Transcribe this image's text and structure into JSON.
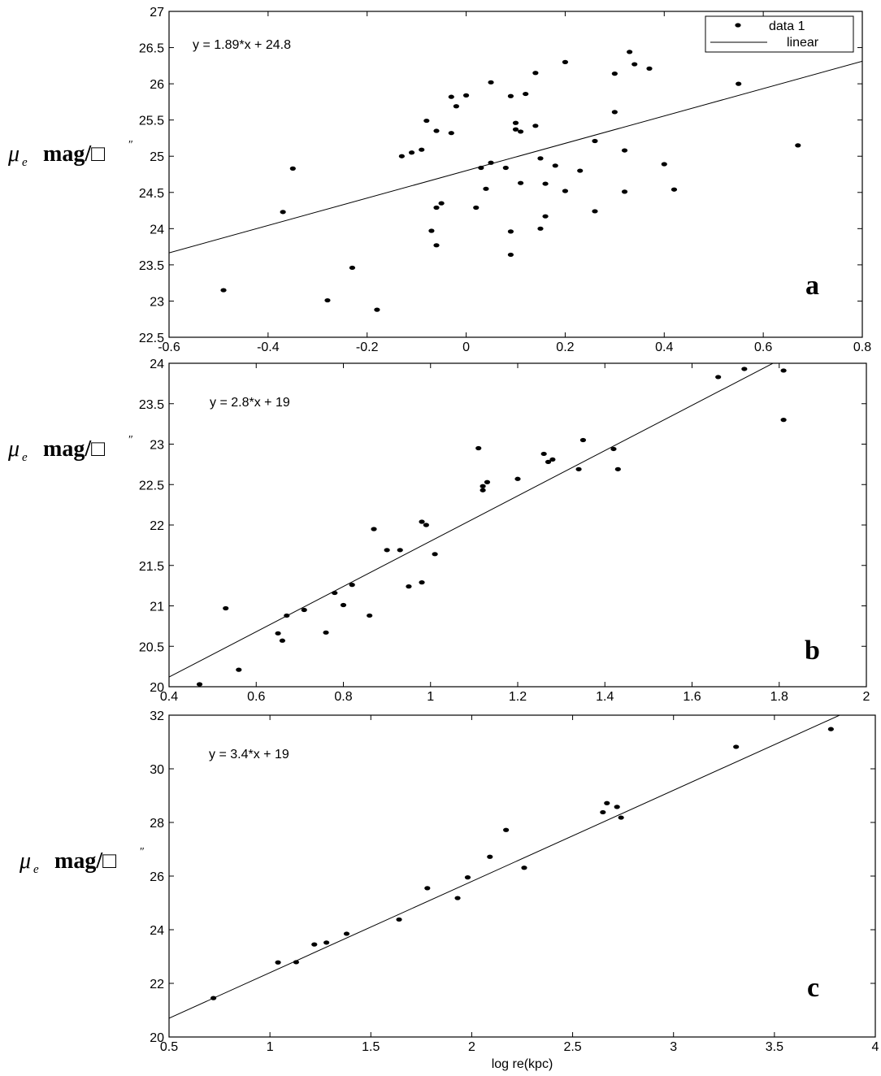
{
  "chart_data": [
    {
      "type": "scatter",
      "panel_label": "a",
      "equation": "y = 1.89*x + 24.8",
      "ylabel": {
        "symbol": "μ",
        "subscript": "e",
        "text": "mag/□",
        "secant": "″"
      },
      "xlabel": "",
      "xlim": [
        -0.6,
        0.8
      ],
      "ylim": [
        22.5,
        27
      ],
      "xticks": [
        "-0.6",
        "-0.4",
        "-0.2",
        "0",
        "0.2",
        "0.4",
        "0.6",
        "0.8"
      ],
      "yticks": [
        "22.5",
        "23",
        "23.5",
        "24",
        "24.5",
        "25",
        "25.5",
        "26",
        "26.5",
        "27"
      ],
      "legend": {
        "position": "top-right",
        "entries": [
          "data 1",
          "linear"
        ]
      },
      "grid": false,
      "fit": {
        "slope": 1.89,
        "intercept": 24.8
      },
      "points": [
        [
          -0.49,
          23.15
        ],
        [
          -0.37,
          24.23
        ],
        [
          -0.35,
          24.83
        ],
        [
          -0.28,
          23.01
        ],
        [
          -0.23,
          23.46
        ],
        [
          -0.18,
          22.88
        ],
        [
          -0.13,
          25.0
        ],
        [
          -0.11,
          25.05
        ],
        [
          -0.09,
          25.09
        ],
        [
          -0.08,
          25.49
        ],
        [
          -0.07,
          23.97
        ],
        [
          -0.06,
          25.35
        ],
        [
          -0.06,
          24.29
        ],
        [
          -0.05,
          24.35
        ],
        [
          -0.06,
          23.77
        ],
        [
          -0.03,
          25.32
        ],
        [
          -0.03,
          25.82
        ],
        [
          -0.02,
          25.69
        ],
        [
          0.0,
          25.84
        ],
        [
          0.02,
          24.29
        ],
        [
          0.03,
          24.84
        ],
        [
          0.04,
          24.55
        ],
        [
          0.05,
          24.91
        ],
        [
          0.05,
          26.02
        ],
        [
          0.08,
          24.84
        ],
        [
          0.09,
          23.96
        ],
        [
          0.09,
          23.64
        ],
        [
          0.09,
          25.83
        ],
        [
          0.1,
          25.46
        ],
        [
          0.1,
          25.37
        ],
        [
          0.11,
          25.34
        ],
        [
          0.11,
          24.63
        ],
        [
          0.12,
          25.86
        ],
        [
          0.14,
          26.15
        ],
        [
          0.14,
          25.42
        ],
        [
          0.15,
          24.0
        ],
        [
          0.15,
          24.97
        ],
        [
          0.16,
          24.17
        ],
        [
          0.16,
          24.62
        ],
        [
          0.18,
          24.87
        ],
        [
          0.2,
          26.3
        ],
        [
          0.2,
          24.52
        ],
        [
          0.23,
          24.8
        ],
        [
          0.26,
          25.21
        ],
        [
          0.26,
          24.24
        ],
        [
          0.3,
          25.61
        ],
        [
          0.3,
          26.14
        ],
        [
          0.32,
          24.51
        ],
        [
          0.32,
          25.08
        ],
        [
          0.33,
          26.44
        ],
        [
          0.34,
          26.27
        ],
        [
          0.37,
          26.21
        ],
        [
          0.4,
          24.89
        ],
        [
          0.42,
          24.54
        ],
        [
          0.55,
          26.0
        ],
        [
          0.67,
          25.15
        ]
      ]
    },
    {
      "type": "scatter",
      "panel_label": "b",
      "equation": "y = 2.8*x + 19",
      "ylabel": {
        "symbol": "μ",
        "subscript": "e",
        "text": "mag/□",
        "secant": "″"
      },
      "xlabel": "",
      "xlim": [
        0.4,
        2
      ],
      "ylim": [
        20,
        24
      ],
      "xticks": [
        "0.4",
        "0.6",
        "0.8",
        "1",
        "1.2",
        "1.4",
        "1.6",
        "1.8",
        "2"
      ],
      "yticks": [
        "20",
        "20.5",
        "21",
        "21.5",
        "22",
        "22.5",
        "23",
        "23.5",
        "24"
      ],
      "grid": false,
      "fit": {
        "slope": 2.8,
        "intercept": 19
      },
      "points": [
        [
          0.47,
          20.03
        ],
        [
          0.53,
          20.97
        ],
        [
          0.56,
          20.21
        ],
        [
          0.65,
          20.66
        ],
        [
          0.66,
          20.57
        ],
        [
          0.67,
          20.88
        ],
        [
          0.71,
          20.95
        ],
        [
          0.76,
          20.67
        ],
        [
          0.78,
          21.16
        ],
        [
          0.8,
          21.01
        ],
        [
          0.82,
          21.26
        ],
        [
          0.86,
          20.88
        ],
        [
          0.87,
          21.95
        ],
        [
          0.9,
          21.69
        ],
        [
          0.93,
          21.69
        ],
        [
          0.95,
          21.24
        ],
        [
          0.98,
          21.29
        ],
        [
          0.98,
          22.04
        ],
        [
          0.99,
          22.0
        ],
        [
          1.01,
          21.64
        ],
        [
          1.11,
          22.95
        ],
        [
          1.12,
          22.48
        ],
        [
          1.12,
          22.43
        ],
        [
          1.13,
          22.53
        ],
        [
          1.2,
          22.57
        ],
        [
          1.26,
          22.88
        ],
        [
          1.27,
          22.78
        ],
        [
          1.28,
          22.81
        ],
        [
          1.34,
          22.69
        ],
        [
          1.35,
          23.05
        ],
        [
          1.42,
          22.94
        ],
        [
          1.43,
          22.69
        ],
        [
          1.66,
          23.83
        ],
        [
          1.72,
          23.93
        ],
        [
          1.81,
          23.91
        ],
        [
          1.81,
          23.3
        ]
      ]
    },
    {
      "type": "scatter",
      "panel_label": "c",
      "equation": "y = 3.4*x + 19",
      "ylabel": {
        "symbol": "μ",
        "subscript": "e",
        "text": "mag/□",
        "secant": "″"
      },
      "xlabel": "log re(kpc)",
      "xlim": [
        0.5,
        4
      ],
      "ylim": [
        20,
        32
      ],
      "xticks": [
        "0.5",
        "1",
        "1.5",
        "2",
        "2.5",
        "3",
        "3.5",
        "4"
      ],
      "yticks": [
        "20",
        "22",
        "24",
        "26",
        "28",
        "30",
        "32"
      ],
      "grid": false,
      "fit": {
        "slope": 3.4,
        "intercept": 19
      },
      "points": [
        [
          0.72,
          21.45
        ],
        [
          1.04,
          22.78
        ],
        [
          1.13,
          22.79
        ],
        [
          1.22,
          23.45
        ],
        [
          1.28,
          23.52
        ],
        [
          1.38,
          23.85
        ],
        [
          1.64,
          24.38
        ],
        [
          1.78,
          25.55
        ],
        [
          1.93,
          25.18
        ],
        [
          1.98,
          25.95
        ],
        [
          2.09,
          26.72
        ],
        [
          2.17,
          27.72
        ],
        [
          2.26,
          26.31
        ],
        [
          2.65,
          28.38
        ],
        [
          2.67,
          28.72
        ],
        [
          2.72,
          28.58
        ],
        [
          2.74,
          28.18
        ],
        [
          3.31,
          30.82
        ],
        [
          3.78,
          31.48
        ]
      ]
    }
  ]
}
